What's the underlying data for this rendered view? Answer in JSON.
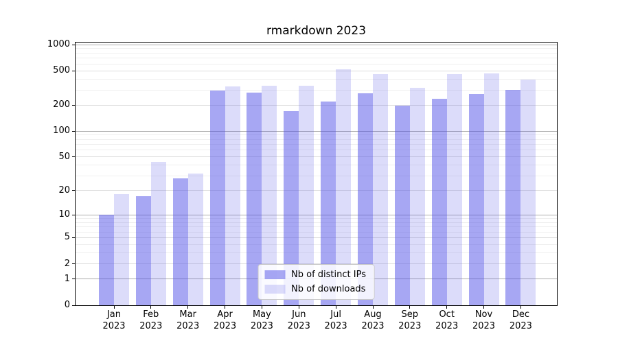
{
  "chart_data": {
    "type": "bar",
    "title": "rmarkdown 2023",
    "categories": [
      "Jan",
      "Feb",
      "Mar",
      "Apr",
      "May",
      "Jun",
      "Jul",
      "Aug",
      "Sep",
      "Oct",
      "Nov",
      "Dec"
    ],
    "x_year_label": "2023",
    "series": [
      {
        "name": "Nb of distinct IPs",
        "color": "rgba(79,79,231,0.5)",
        "values": [
          10,
          17,
          28,
          295,
          280,
          172,
          220,
          275,
          198,
          238,
          270,
          300
        ]
      },
      {
        "name": "Nb of downloads",
        "color": "rgba(79,79,231,0.2)",
        "values": [
          18,
          44,
          32,
          330,
          335,
          335,
          520,
          458,
          318,
          455,
          466,
          395
        ]
      }
    ],
    "y_axis": {
      "scale": "log1p",
      "min": 0,
      "max": 1000,
      "ticks": [
        0,
        1,
        2,
        5,
        10,
        20,
        50,
        100,
        200,
        500,
        1000
      ]
    },
    "x_axis": {
      "tick_labels": [
        "Jan 2023",
        "Feb 2023",
        "Mar 2023",
        "Apr 2023",
        "May 2023",
        "Jun 2023",
        "Jul 2023",
        "Aug 2023",
        "Sep 2023",
        "Oct 2023",
        "Nov 2023",
        "Dec 2023"
      ]
    },
    "legend": {
      "position": "bottom-center"
    },
    "grid": true,
    "colors": {
      "bar_dark_on_white": "#a7a7f3",
      "bar_light_on_white": "#dcdcf8",
      "grid_major": "#ababab",
      "grid_sub": "#dcdcdc",
      "grid_minor": "#efefef",
      "frame": "#000000"
    }
  }
}
